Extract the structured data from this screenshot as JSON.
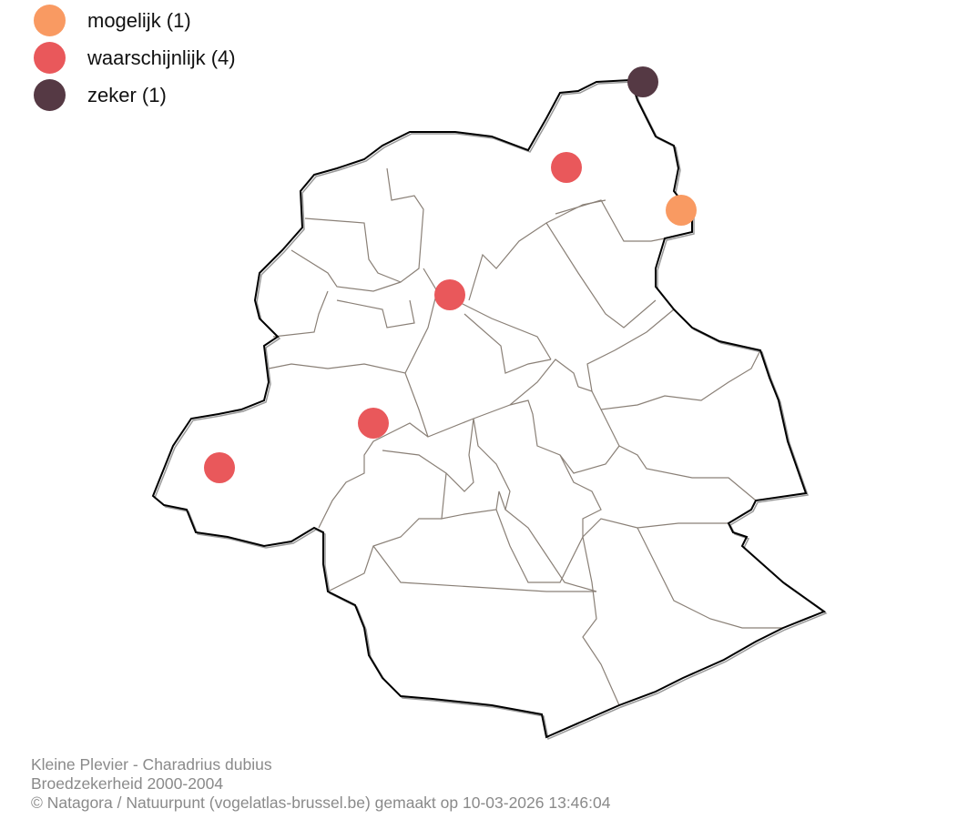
{
  "legend": {
    "items": [
      {
        "key": "mogelijk",
        "label": "mogelijk (1)",
        "color": "#f99a62"
      },
      {
        "key": "waarschijnlijk",
        "label": "waarschijnlijk (4)",
        "color": "#e9585b"
      },
      {
        "key": "zeker",
        "label": "zeker (1)",
        "color": "#553944"
      }
    ]
  },
  "footer": {
    "species": "Kleine Plevier - Charadrius dubius",
    "subtitle": "Broedzekerheid 2000-2004",
    "credit": "© Natagora / Natuurpunt (vogelatlas-brussel.be) gemaakt op 10-03-2026 13:46:04"
  },
  "map": {
    "outline_color": "#000000",
    "commune_line_color": "#8a8077",
    "observation_counts": {
      "mogelijk": 1,
      "waarschijnlijk": 4,
      "zeker": 1
    }
  }
}
